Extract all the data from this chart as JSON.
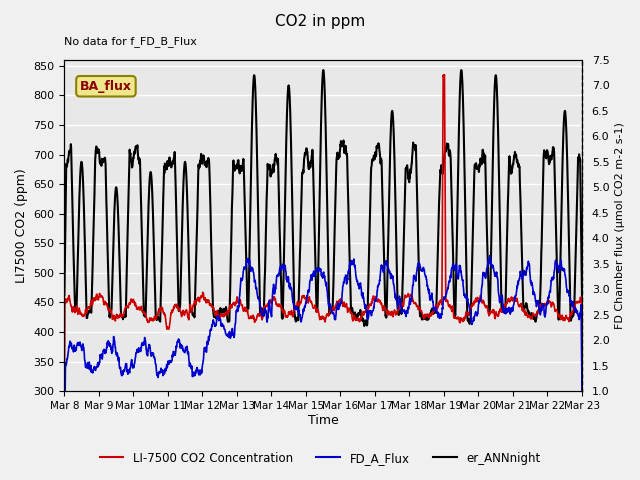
{
  "title": "CO2 in ppm",
  "note": "No data for f_FD_B_Flux",
  "ba_flux_label": "BA_flux",
  "xlabel": "Time",
  "ylabel_left": "LI7500 CO2 (ppm)",
  "ylabel_right": "FD Chamber flux (μmol CO2 m-2 s-1)",
  "ylim_left": [
    300,
    860
  ],
  "ylim_right": [
    1.0,
    7.5
  ],
  "xtick_labels": [
    "Mar 8",
    "Mar 9",
    "Mar 10",
    "Mar 11",
    "Mar 12",
    "Mar 13",
    "Mar 14",
    "Mar 15",
    "Mar 16",
    "Mar 17",
    "Mar 18",
    "Mar 19",
    "Mar 20",
    "Mar 21",
    "Mar 22",
    "Mar 23"
  ],
  "yticks_left": [
    300,
    350,
    400,
    450,
    500,
    550,
    600,
    650,
    700,
    750,
    800,
    850
  ],
  "yticks_right": [
    1.0,
    1.5,
    2.0,
    2.5,
    3.0,
    3.5,
    4.0,
    4.5,
    5.0,
    5.5,
    6.0,
    6.5,
    7.0,
    7.5
  ],
  "legend_entries": [
    "LI-7500 CO2 Concentration",
    "FD_A_Flux",
    "er_ANNnight"
  ],
  "legend_colors": [
    "#cc0000",
    "#0000cc",
    "#000000"
  ],
  "line_lw_red": 1.2,
  "line_lw_blue": 1.2,
  "line_lw_black": 1.5,
  "bg_color": "#f0f0f0",
  "plot_bg_color": "#e8e8e8",
  "grid_color": "#ffffff",
  "ba_flux_bg": "#f0e68c",
  "ba_flux_border": "#8B8000",
  "days": 15,
  "n_points": 2000
}
